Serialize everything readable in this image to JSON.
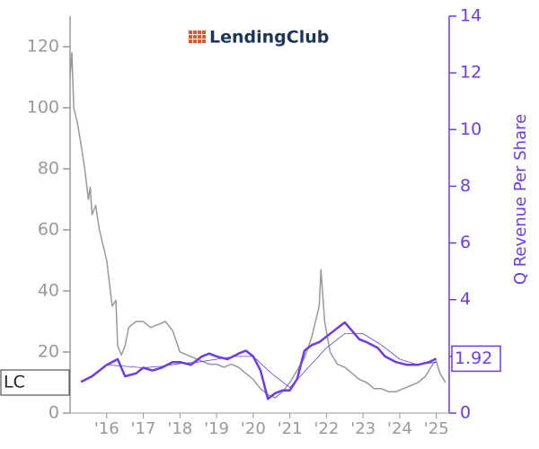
{
  "chart_data": {
    "type": "line",
    "logo": "LendingClub",
    "y2_label": "Q Revenue Per Share",
    "xlim": [
      2015.0,
      2025.35
    ],
    "xticks": [
      {
        "value": 2016,
        "label": "'16"
      },
      {
        "value": 2017,
        "label": "'17"
      },
      {
        "value": 2018,
        "label": "'18"
      },
      {
        "value": 2019,
        "label": "'19"
      },
      {
        "value": 2020,
        "label": "'20"
      },
      {
        "value": 2021,
        "label": "'21"
      },
      {
        "value": 2022,
        "label": "'22"
      },
      {
        "value": 2023,
        "label": "'23"
      },
      {
        "value": 2024,
        "label": "'24"
      },
      {
        "value": 2025,
        "label": "'25"
      }
    ],
    "ylim": [
      0,
      130
    ],
    "yticks": [
      0,
      20,
      40,
      60,
      80,
      100,
      120
    ],
    "y2lim": [
      0,
      14
    ],
    "y2ticks": [
      0,
      2,
      4,
      6,
      8,
      10,
      12,
      14
    ],
    "series": [
      {
        "name": "LC",
        "color": "#999999",
        "width": 1.5,
        "x": [
          2015.0,
          2015.05,
          2015.1,
          2015.2,
          2015.3,
          2015.4,
          2015.5,
          2015.55,
          2015.6,
          2015.7,
          2015.8,
          2015.9,
          2016.0,
          2016.05,
          2016.15,
          2016.25,
          2016.3,
          2016.4,
          2016.5,
          2016.6,
          2016.8,
          2017.0,
          2017.2,
          2017.4,
          2017.6,
          2017.8,
          2018.0,
          2018.2,
          2018.4,
          2018.6,
          2018.8,
          2019.0,
          2019.2,
          2019.4,
          2019.6,
          2019.8,
          2020.0,
          2020.2,
          2020.4,
          2020.6,
          2020.8,
          2021.0,
          2021.2,
          2021.4,
          2021.6,
          2021.8,
          2021.85,
          2021.95,
          2022.1,
          2022.3,
          2022.5,
          2022.7,
          2022.9,
          2023.1,
          2023.3,
          2023.5,
          2023.7,
          2023.9,
          2024.1,
          2024.3,
          2024.5,
          2024.7,
          2024.9,
          2025.0,
          2025.1,
          2025.25
        ],
        "values": [
          110,
          118,
          100,
          95,
          88,
          80,
          70,
          74,
          65,
          68,
          60,
          55,
          50,
          45,
          35,
          37,
          22,
          19,
          22,
          28,
          30,
          30,
          28,
          29,
          30,
          27,
          20,
          19,
          18,
          17,
          16,
          16,
          15,
          16,
          15,
          13,
          11,
          8,
          6,
          5,
          7,
          10,
          14,
          18,
          25,
          35,
          47,
          30,
          20,
          16,
          15,
          13,
          11,
          10,
          8,
          8,
          7,
          7,
          8,
          9,
          10,
          12,
          16,
          17,
          13,
          10
        ]
      },
      {
        "axis": "y2",
        "color": "#6a3de8",
        "width": 0.8,
        "x": [
          2016.0,
          2016.5,
          2017.0,
          2017.5,
          2018.0,
          2018.5,
          2019.0,
          2019.5,
          2020.0,
          2020.5,
          2021.0,
          2021.5,
          2022.0,
          2022.5,
          2023.0,
          2023.5,
          2024.0,
          2024.5,
          2025.0
        ],
        "values": [
          1.7,
          1.65,
          1.6,
          1.65,
          1.75,
          1.8,
          1.9,
          2.0,
          2.0,
          1.4,
          0.9,
          1.6,
          2.3,
          2.8,
          2.8,
          2.4,
          1.9,
          1.7,
          1.8
        ]
      },
      {
        "axis": "y2",
        "color": "#6a3de8",
        "width": 2.5,
        "x": [
          2015.3,
          2015.6,
          2016.0,
          2016.3,
          2016.5,
          2016.8,
          2017.0,
          2017.25,
          2017.5,
          2017.8,
          2018.0,
          2018.3,
          2018.6,
          2018.8,
          2019.0,
          2019.3,
          2019.6,
          2019.8,
          2020.0,
          2020.2,
          2020.4,
          2020.6,
          2020.8,
          2021.0,
          2021.2,
          2021.4,
          2021.6,
          2021.8,
          2022.0,
          2022.3,
          2022.5,
          2022.7,
          2022.9,
          2023.1,
          2023.4,
          2023.6,
          2023.9,
          2024.2,
          2024.5,
          2024.8,
          2025.0
        ],
        "values": [
          1.1,
          1.3,
          1.7,
          1.9,
          1.3,
          1.4,
          1.6,
          1.5,
          1.6,
          1.8,
          1.8,
          1.7,
          2.0,
          2.1,
          2.0,
          1.9,
          2.1,
          2.2,
          2.0,
          1.5,
          0.5,
          0.7,
          0.8,
          0.8,
          1.2,
          2.2,
          2.4,
          2.5,
          2.7,
          3.0,
          3.2,
          2.9,
          2.6,
          2.5,
          2.3,
          2.0,
          1.8,
          1.7,
          1.7,
          1.8,
          1.92
        ]
      }
    ]
  }
}
